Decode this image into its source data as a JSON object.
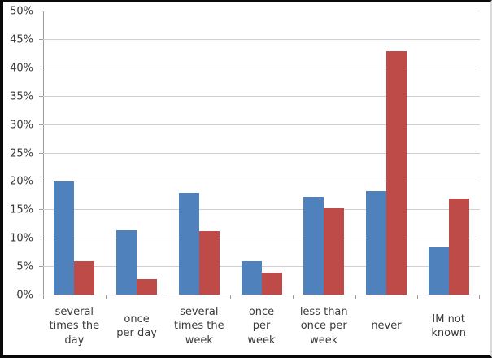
{
  "chart_data": {
    "type": "bar",
    "title": "",
    "xlabel": "",
    "ylabel": "",
    "legend": "none",
    "grid": true,
    "ylim": [
      0,
      50
    ],
    "ytick_step": 5,
    "ytick_labels": [
      "0%",
      "5%",
      "10%",
      "15%",
      "20%",
      "25%",
      "30%",
      "35%",
      "40%",
      "45%",
      "50%"
    ],
    "categories": [
      "several times the day",
      "once per day",
      "several times the week",
      "once per week",
      "less than once per week",
      "never",
      "IM not known"
    ],
    "category_display": [
      "several\ntimes the\nday",
      "once\nper day",
      "several\ntimes the\nweek",
      "once\nper\nweek",
      "less than\nonce per\nweek",
      "never",
      "IM not\nknown"
    ],
    "series": [
      {
        "name": "blue",
        "color": "#4F81BD",
        "values": [
          20.1,
          11.4,
          18.1,
          6.0,
          17.4,
          18.3,
          8.5
        ]
      },
      {
        "name": "red",
        "color": "#BE4B48",
        "values": [
          6.0,
          2.9,
          11.3,
          4.0,
          15.4,
          43.0,
          17.0
        ]
      }
    ]
  },
  "styles": {
    "grid_color": "#d1cfcf",
    "axis_color": "#9d9b9b",
    "text_color": "#3a3a3a",
    "frame_border_color": "#0a0a0a",
    "background_color": "#ffffff"
  }
}
